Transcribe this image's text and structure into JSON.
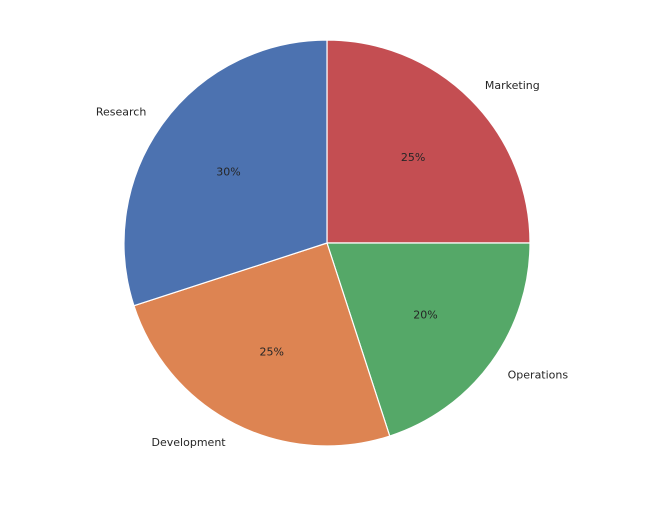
{
  "chart_data": {
    "type": "pie",
    "title": "",
    "slices": [
      {
        "label": "Marketing",
        "value": 25,
        "pct_label": "25%",
        "color": "#c44e52"
      },
      {
        "label": "Operations",
        "value": 20,
        "pct_label": "20%",
        "color": "#55a868"
      },
      {
        "label": "Development",
        "value": 25,
        "pct_label": "25%",
        "color": "#dd8452"
      },
      {
        "label": "Research",
        "value": 30,
        "pct_label": "30%",
        "color": "#4c72b0"
      }
    ],
    "start_angle_deg": 90,
    "direction": "clockwise",
    "legend": "none"
  }
}
